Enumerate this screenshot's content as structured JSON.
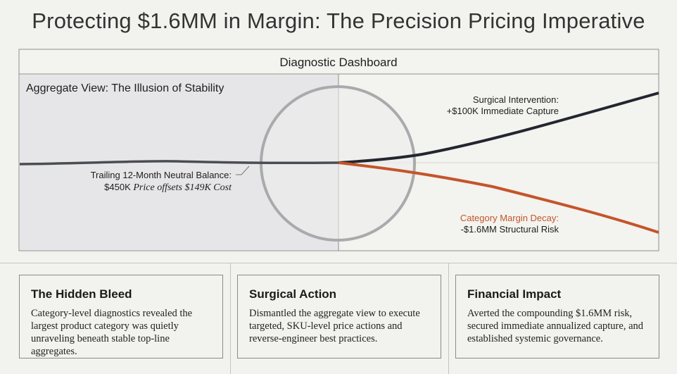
{
  "title": "Protecting $1.6MM in Margin: The Precision Pricing Imperative",
  "dashboard": {
    "header": "Diagnostic Dashboard",
    "aggregate_label": "Aggregate View: The Illusion of Stability",
    "neutral_label_line1": "Trailing 12-Month Neutral Balance:",
    "neutral_label_prefix": "$450K",
    "neutral_label_italic": "Price offsets $149K Cost",
    "intervention_label_line1": "Surgical Intervention:",
    "intervention_label_line2": "+$100K Immediate Capture",
    "decay_label_line1": "Category Margin Decay:",
    "decay_label_line2": "-$1.6MM Structural Risk",
    "colors": {
      "intervention": "#23262f",
      "decay": "#c4552a",
      "aggregate": "#4a4d52"
    }
  },
  "cards": [
    {
      "title": "The Hidden Bleed",
      "body": "Category-level diagnostics revealed the largest product category was quietly unraveling beneath stable top-line aggregates."
    },
    {
      "title": "Surgical Action",
      "body": "Dismantled the aggregate view to execute targeted, SKU-level price actions and reverse-engineer best practices."
    },
    {
      "title": "Financial Impact",
      "body": "Averted the compounding $1.6MM risk, secured immediate annualized capture, and established systemic governance."
    }
  ]
}
